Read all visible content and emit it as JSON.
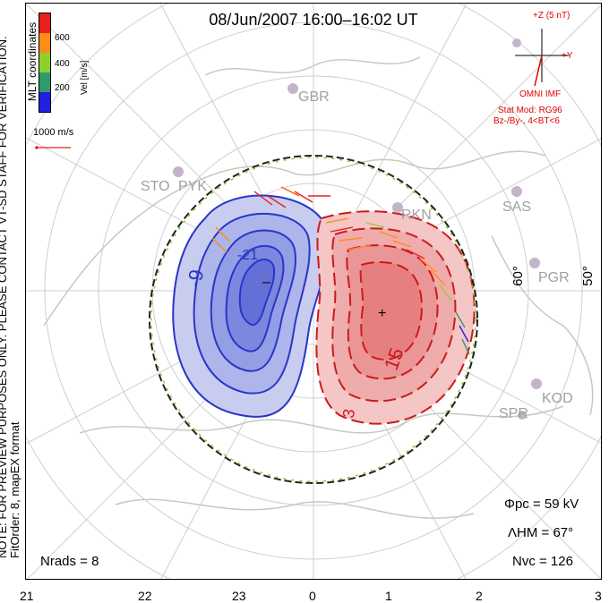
{
  "title": "08/Jun/2007 16:00–16:02 UT",
  "coordinates_label": "MLT coordinates",
  "note_line1": "NOTE: FOR PREVIEW PURPOSES ONLY. PLEASE CONTACT VT-SD STAFF FOR VERIFICATION.",
  "note_line2": "FitOrder: 8, mapEX format",
  "colorbar": {
    "title": "Vel [m/s]",
    "ticks": [
      "600",
      "400",
      "200"
    ],
    "colors": [
      "#e8201a",
      "#ff8c1a",
      "#8fd02a",
      "#2f9a6a",
      "#2020e0"
    ]
  },
  "vector_scale": "1000 m/s",
  "imf": {
    "z_label": "+Z (5 nT)",
    "y_label": "+Y",
    "source": "OMNI IMF",
    "model_line1": "Stat Mod: RG96",
    "model_line2": "Bz-/By-, 4<BT<6"
  },
  "stats": {
    "phi_pc": "Φpc = 59 kV",
    "lambda_hm": "ΛHM = 67°",
    "n_vc": "Nvc = 126",
    "n_rads": "Nrads = 8"
  },
  "mlt_ticks": [
    "21",
    "22",
    "23",
    "0",
    "1",
    "2",
    "3"
  ],
  "latitude_labels": [
    "60°",
    "50°"
  ],
  "sites": [
    "GBR",
    "STO",
    "PYK",
    "RKN",
    "SAS",
    "PGR",
    "KOD",
    "SPR"
  ],
  "contour_labels": [
    "-9",
    "-21",
    "15",
    "3"
  ],
  "colors": {
    "negative": "#2a35c8",
    "positive": "#cc1a1a",
    "boundary": "#222222",
    "imf_red": "#e00000"
  }
}
